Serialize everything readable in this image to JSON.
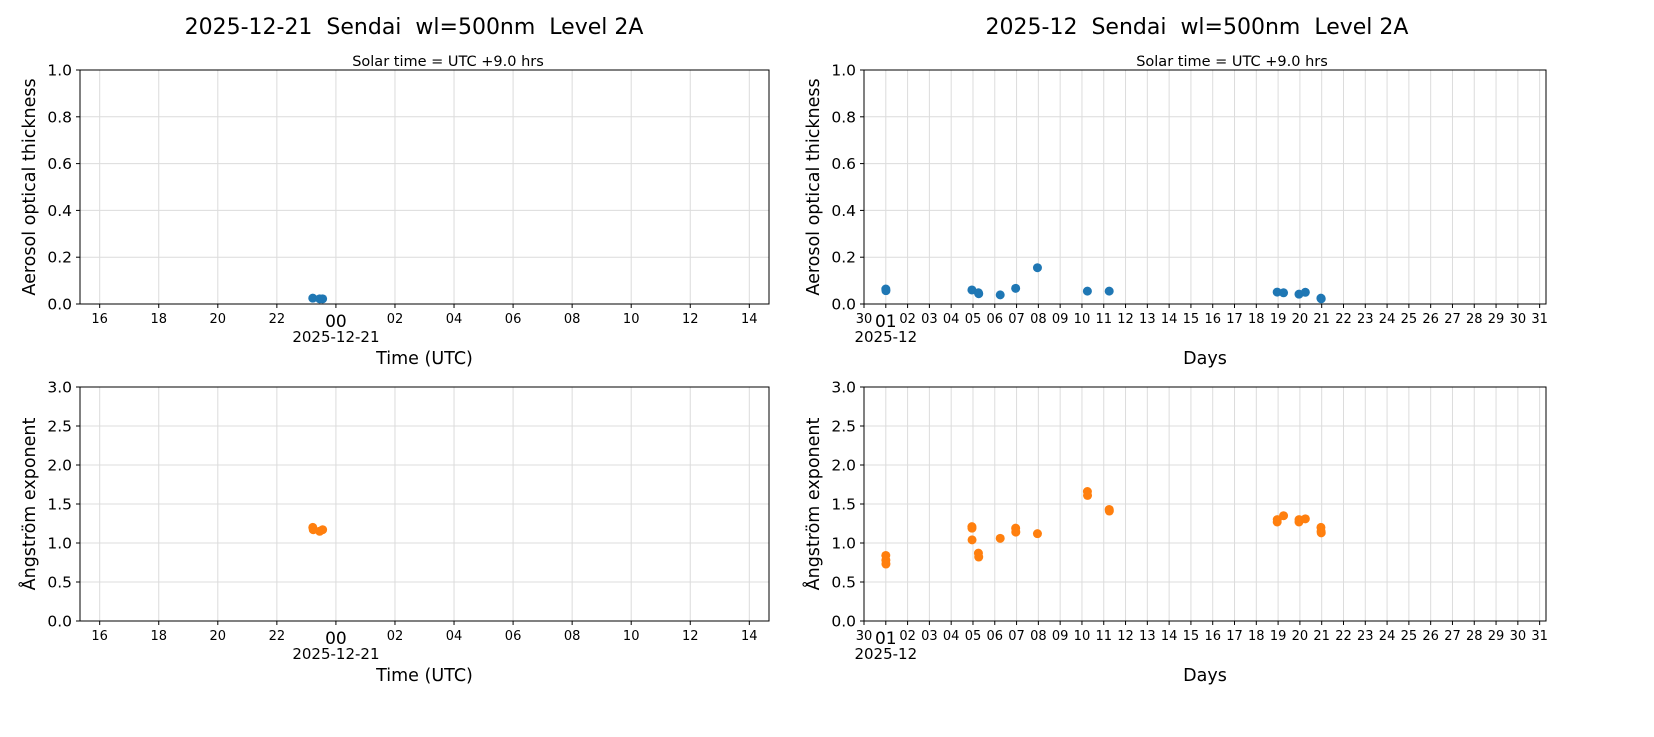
{
  "figure": {
    "left_title": "2025-12-21  Sendai  wl=500nm  Level 2A",
    "right_title": "2025-12  Sendai  wl=500nm  Level 2A",
    "subtitle": "Solar time = UTC +9.0 hrs"
  },
  "colors": {
    "aod": "#1f77b4",
    "angstrom": "#ff7f0e",
    "grid": "#dcdcdc"
  },
  "chart_data": [
    {
      "id": "daily-aod",
      "type": "scatter",
      "ylabel": "Aerosol optical thickness",
      "xlabel": "Time (UTC)",
      "xlim": [
        "2025-12-20T15:20",
        "2025-12-21T14:40"
      ],
      "ylim": [
        0,
        1.0
      ],
      "yticks": [
        "0.0",
        "0.2",
        "0.4",
        "0.6",
        "0.8",
        "1.0"
      ],
      "grid": true,
      "x_tick_step": "2h",
      "x_tick_labels": [
        "16",
        "18",
        "20",
        "22",
        "00",
        "02",
        "04",
        "06",
        "08",
        "10",
        "12",
        "14"
      ],
      "x_major_label": "00",
      "x_date_label": "2025-12-21",
      "color_key": "aod",
      "points": [
        [
          "2025-12-20T23:13",
          0.025
        ],
        [
          "2025-12-20T23:27",
          0.022
        ],
        [
          "2025-12-20T23:33",
          0.022
        ]
      ]
    },
    {
      "id": "monthly-aod",
      "type": "scatter",
      "ylabel": "Aerosol optical thickness",
      "xlabel": "Days",
      "xlim": [
        "2025-11-30T00:00",
        "2025-12-31T07:00"
      ],
      "ylim": [
        0,
        1.0
      ],
      "yticks": [
        "0.0",
        "0.2",
        "0.4",
        "0.6",
        "0.8",
        "1.0"
      ],
      "grid": true,
      "x_tick_step": "1d",
      "x_tick_labels": [
        "30",
        "01",
        "02",
        "03",
        "04",
        "05",
        "06",
        "07",
        "08",
        "09",
        "10",
        "11",
        "12",
        "13",
        "14",
        "15",
        "16",
        "17",
        "18",
        "19",
        "20",
        "21",
        "22",
        "23",
        "24",
        "25",
        "26",
        "27",
        "28",
        "29",
        "30",
        "31"
      ],
      "x_major_label": "01",
      "x_date_label": "2025-12",
      "color_key": "aod",
      "points": [
        [
          "2025-12-01T00:00",
          0.064
        ],
        [
          "2025-12-01T00:10",
          0.057
        ],
        [
          "2025-12-04T22:50",
          0.06
        ],
        [
          "2025-12-05T06:00",
          0.048
        ],
        [
          "2025-12-05T06:20",
          0.044
        ],
        [
          "2025-12-06T06:00",
          0.039
        ],
        [
          "2025-12-06T23:00",
          0.067
        ],
        [
          "2025-12-07T23:00",
          0.155
        ],
        [
          "2025-12-10T06:00",
          0.055
        ],
        [
          "2025-12-11T06:00",
          0.055
        ],
        [
          "2025-12-18T23:00",
          0.051
        ],
        [
          "2025-12-19T06:00",
          0.048
        ],
        [
          "2025-12-19T23:00",
          0.042
        ],
        [
          "2025-12-20T06:00",
          0.05
        ],
        [
          "2025-12-20T23:10",
          0.025
        ],
        [
          "2025-12-20T23:30",
          0.022
        ]
      ]
    },
    {
      "id": "daily-angstrom",
      "type": "scatter",
      "ylabel": "Ångström exponent",
      "xlabel": "Time (UTC)",
      "xlim": [
        "2025-12-20T15:20",
        "2025-12-21T14:40"
      ],
      "ylim": [
        0,
        3.0
      ],
      "yticks": [
        "0.0",
        "0.5",
        "1.0",
        "1.5",
        "2.0",
        "2.5",
        "3.0"
      ],
      "grid": true,
      "x_tick_step": "2h",
      "x_tick_labels": [
        "16",
        "18",
        "20",
        "22",
        "00",
        "02",
        "04",
        "06",
        "08",
        "10",
        "12",
        "14"
      ],
      "x_major_label": "00",
      "x_date_label": "2025-12-21",
      "color_key": "angstrom",
      "points": [
        [
          "2025-12-20T23:13",
          1.2
        ],
        [
          "2025-12-20T23:14",
          1.17
        ],
        [
          "2025-12-20T23:27",
          1.15
        ],
        [
          "2025-12-20T23:33",
          1.17
        ]
      ]
    },
    {
      "id": "monthly-angstrom",
      "type": "scatter",
      "ylabel": "Ångström exponent",
      "xlabel": "Days",
      "xlim": [
        "2025-11-30T00:00",
        "2025-12-31T07:00"
      ],
      "ylim": [
        0,
        3.0
      ],
      "yticks": [
        "0.0",
        "0.5",
        "1.0",
        "1.5",
        "2.0",
        "2.5",
        "3.0"
      ],
      "grid": true,
      "x_tick_step": "1d",
      "x_tick_labels": [
        "30",
        "01",
        "02",
        "03",
        "04",
        "05",
        "06",
        "07",
        "08",
        "09",
        "10",
        "11",
        "12",
        "13",
        "14",
        "15",
        "16",
        "17",
        "18",
        "19",
        "20",
        "21",
        "22",
        "23",
        "24",
        "25",
        "26",
        "27",
        "28",
        "29",
        "30",
        "31"
      ],
      "x_major_label": "01",
      "x_date_label": "2025-12",
      "color_key": "angstrom",
      "points": [
        [
          "2025-12-01T00:00",
          0.84
        ],
        [
          "2025-12-01T00:05",
          0.78
        ],
        [
          "2025-12-01T00:10",
          0.73
        ],
        [
          "2025-12-04T22:50",
          1.21
        ],
        [
          "2025-12-04T22:55",
          1.19
        ],
        [
          "2025-12-04T23:00",
          1.04
        ],
        [
          "2025-12-05T06:00",
          0.87
        ],
        [
          "2025-12-05T06:20",
          0.82
        ],
        [
          "2025-12-06T06:00",
          1.06
        ],
        [
          "2025-12-06T23:00",
          1.19
        ],
        [
          "2025-12-06T23:10",
          1.14
        ],
        [
          "2025-12-07T23:00",
          1.12
        ],
        [
          "2025-12-10T06:00",
          1.66
        ],
        [
          "2025-12-10T06:10",
          1.61
        ],
        [
          "2025-12-11T06:00",
          1.43
        ],
        [
          "2025-12-11T06:10",
          1.41
        ],
        [
          "2025-12-18T23:00",
          1.27
        ],
        [
          "2025-12-18T23:05",
          1.3
        ],
        [
          "2025-12-19T06:00",
          1.35
        ],
        [
          "2025-12-19T23:00",
          1.27
        ],
        [
          "2025-12-19T23:05",
          1.3
        ],
        [
          "2025-12-20T06:00",
          1.31
        ],
        [
          "2025-12-20T23:10",
          1.2
        ],
        [
          "2025-12-20T23:20",
          1.15
        ],
        [
          "2025-12-20T23:30",
          1.13
        ]
      ]
    }
  ]
}
